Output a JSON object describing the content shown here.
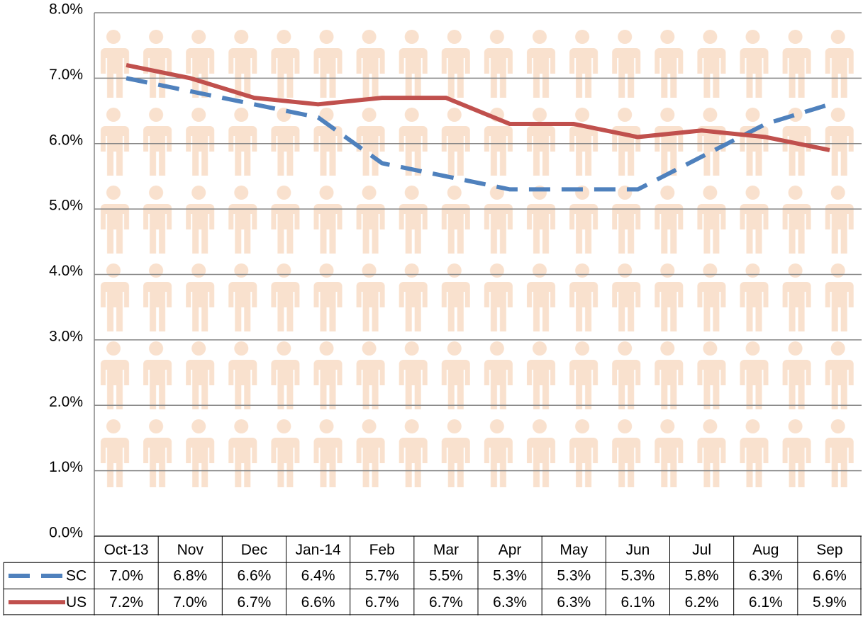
{
  "chart_data": {
    "type": "line",
    "categories": [
      "Oct-13",
      "Nov",
      "Dec",
      "Jan-14",
      "Feb",
      "Mar",
      "Apr",
      "May",
      "Jun",
      "Jul",
      "Aug",
      "Sep"
    ],
    "series": [
      {
        "name": "SC",
        "color": "#4f81bd",
        "dashed": true,
        "values": [
          7.0,
          6.8,
          6.6,
          6.4,
          5.7,
          5.5,
          5.3,
          5.3,
          5.3,
          5.8,
          6.3,
          6.6
        ],
        "value_labels": [
          "7.0%",
          "6.8%",
          "6.6%",
          "6.4%",
          "5.7%",
          "5.5%",
          "5.3%",
          "5.3%",
          "5.3%",
          "5.8%",
          "6.3%",
          "6.6%"
        ]
      },
      {
        "name": "US",
        "color": "#c0504d",
        "dashed": false,
        "values": [
          7.2,
          7.0,
          6.7,
          6.6,
          6.7,
          6.7,
          6.3,
          6.3,
          6.1,
          6.2,
          6.1,
          5.9
        ],
        "value_labels": [
          "7.2%",
          "7.0%",
          "6.7%",
          "6.6%",
          "6.7%",
          "6.7%",
          "6.3%",
          "6.3%",
          "6.1%",
          "6.2%",
          "6.1%",
          "5.9%"
        ]
      }
    ],
    "ylim": [
      0,
      8
    ],
    "yticks": [
      {
        "value": 0,
        "label": "0.0%"
      },
      {
        "value": 1,
        "label": "1.0%"
      },
      {
        "value": 2,
        "label": "2.0%"
      },
      {
        "value": 3,
        "label": "3.0%"
      },
      {
        "value": 4,
        "label": "4.0%"
      },
      {
        "value": 5,
        "label": "5.0%"
      },
      {
        "value": 6,
        "label": "6.0%"
      },
      {
        "value": 7,
        "label": "7.0%"
      },
      {
        "value": 8,
        "label": "8.0%"
      }
    ],
    "grid": true,
    "data_table": true
  }
}
